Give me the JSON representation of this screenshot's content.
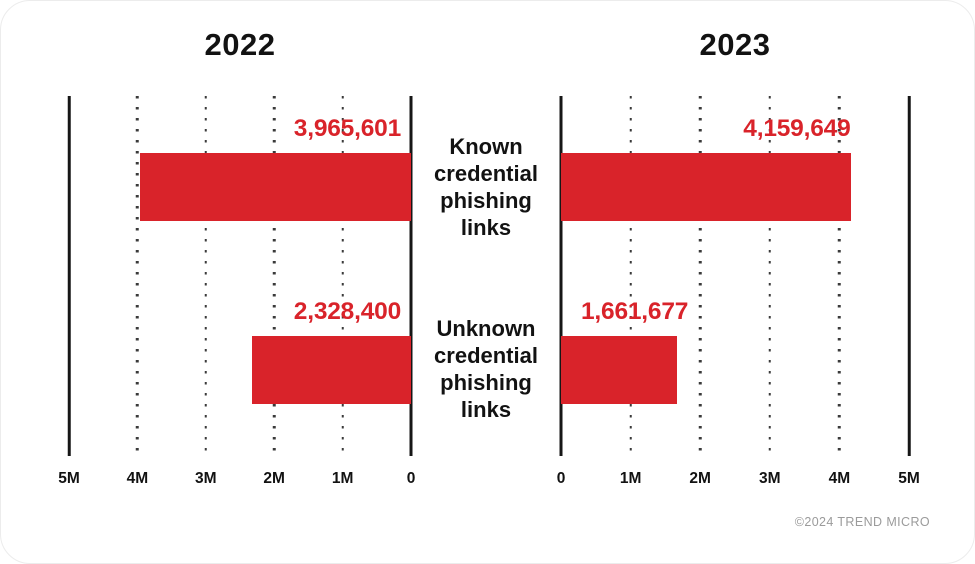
{
  "chart_data": {
    "type": "bar",
    "layout": "mirrored-horizontal",
    "title": "Known vs unknown credential phishing links, 2022 vs 2023",
    "categories": [
      "Known credential phishing links",
      "Unknown credential phishing links"
    ],
    "series": [
      {
        "name": "2022",
        "values": [
          3965601,
          2328400
        ],
        "labels": [
          "3,965,601",
          "2,328,400"
        ]
      },
      {
        "name": "2023",
        "values": [
          4159649,
          1661677
        ],
        "labels": [
          "4,159,649",
          "1,661,677"
        ]
      }
    ],
    "xlim": [
      0,
      5000000
    ],
    "grid": "dotted-vertical",
    "bar_color": "#d9232a",
    "panels": [
      {
        "title": "2022",
        "direction": "left",
        "axis_ticks": [
          "5M",
          "4M",
          "3M",
          "2M",
          "1M",
          "0"
        ]
      },
      {
        "title": "2023",
        "direction": "right",
        "axis_ticks": [
          "0",
          "1M",
          "2M",
          "3M",
          "4M",
          "5M"
        ]
      }
    ]
  },
  "colors": {
    "bar": "#d9232a",
    "value_label": "#d9232a",
    "text": "#121212",
    "grid_dot": "#3a3a3a",
    "footer": "#9b9b9b"
  },
  "footer": {
    "copyright": "©2024 TREND MICRO"
  }
}
